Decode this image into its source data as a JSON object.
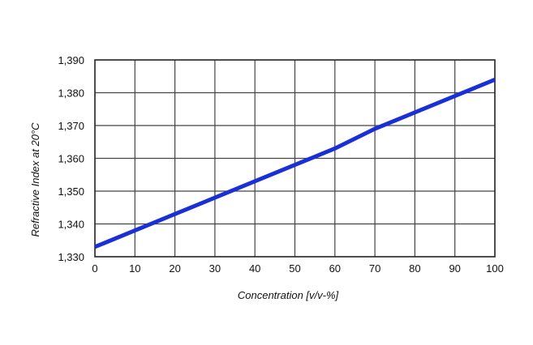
{
  "chart_data": {
    "type": "line",
    "title": "",
    "xlabel": "Concentration [v/v-%]",
    "ylabel": "Refractive Index at 20°C",
    "xlim": [
      0,
      100
    ],
    "ylim": [
      1.33,
      1.39
    ],
    "x_ticks": [
      0,
      10,
      20,
      30,
      40,
      50,
      60,
      70,
      80,
      90,
      100
    ],
    "x_tick_labels": [
      "0",
      "10",
      "20",
      "30",
      "40",
      "50",
      "60",
      "70",
      "80",
      "90",
      "100"
    ],
    "y_ticks": [
      1.33,
      1.34,
      1.35,
      1.36,
      1.37,
      1.38,
      1.39
    ],
    "y_tick_labels": [
      "1,330",
      "1,340",
      "1,350",
      "1,360",
      "1,370",
      "1,380",
      "1,390"
    ],
    "grid": true,
    "legend": "none",
    "series": [
      {
        "color": "#1a2fd6",
        "x": [
          0,
          10,
          20,
          30,
          40,
          50,
          60,
          70,
          80,
          90,
          100
        ],
        "y": [
          1.333,
          1.338,
          1.343,
          1.348,
          1.353,
          1.358,
          1.363,
          1.369,
          1.374,
          1.379,
          1.384
        ]
      }
    ]
  }
}
